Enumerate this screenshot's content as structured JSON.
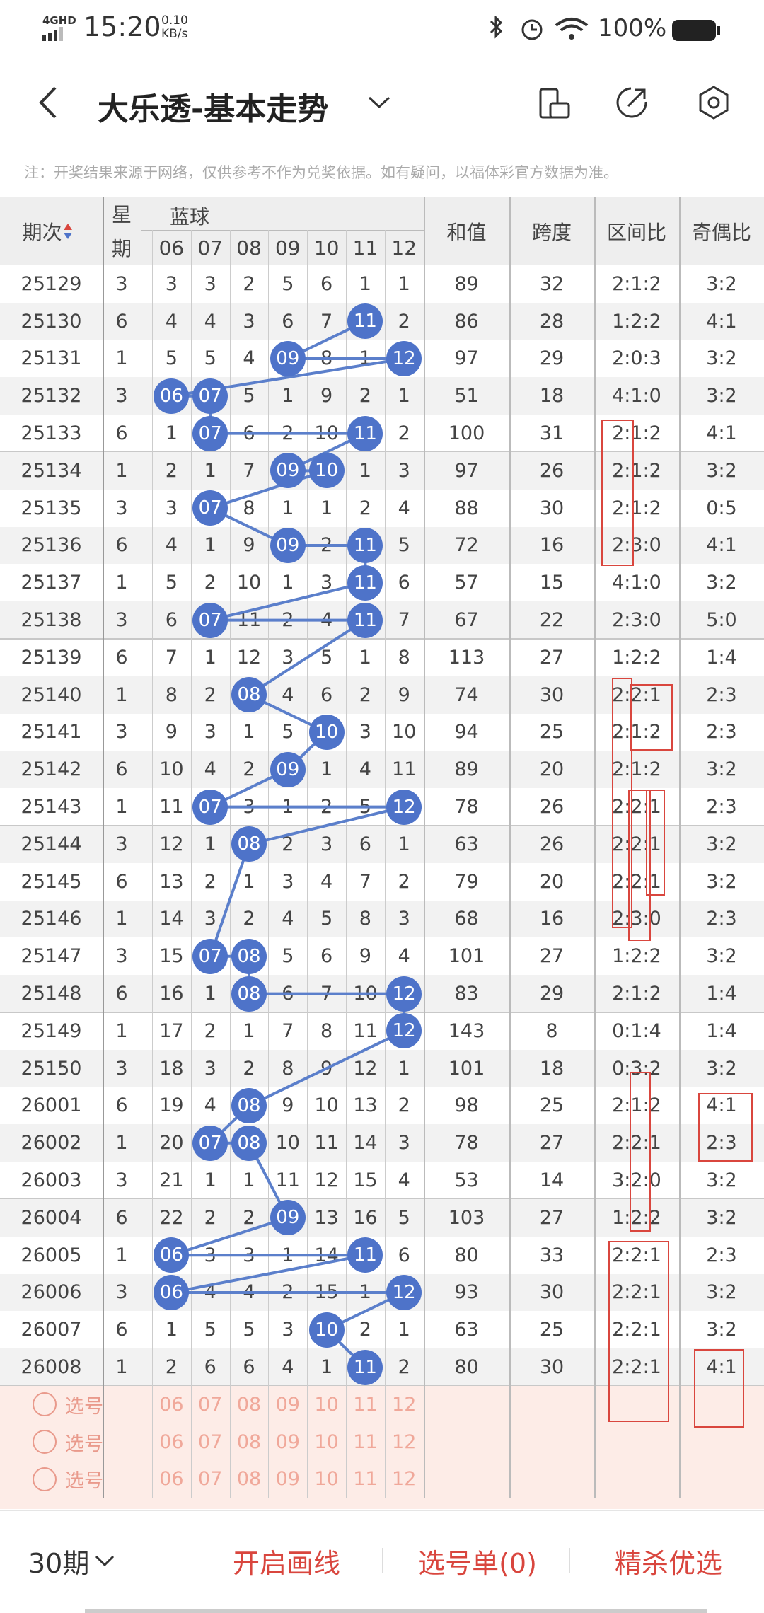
{
  "status_bar": {
    "network": "4GHD",
    "time": "15:20",
    "speed": "0.10",
    "speed_unit": "KB/s",
    "battery": "100%"
  },
  "header": {
    "title": "大乐透-基本走势"
  },
  "note": "注：开奖结果来源于网络，仅供参考不作为兑奖依据。如有疑问，以福体彩官方数据为准。",
  "table": {
    "columns": {
      "period": "期次",
      "week_top": "星",
      "week_bottom": "期",
      "blue": "蓝球",
      "blue_numbers": [
        "06",
        "07",
        "08",
        "09",
        "10",
        "11",
        "12"
      ],
      "sum": "和值",
      "span": "跨度",
      "zone": "区间比",
      "parity": "奇偶比"
    },
    "rows": [
      {
        "period": "25129",
        "week": "3",
        "blue": [
          "3",
          "3",
          "2",
          "5",
          "6",
          "1",
          "1"
        ],
        "hit": [
          false,
          false,
          false,
          false,
          false,
          false,
          false
        ],
        "sum": "89",
        "span": "32",
        "zone": "2:1:2",
        "parity": "3:2"
      },
      {
        "period": "25130",
        "week": "6",
        "blue": [
          "4",
          "4",
          "3",
          "6",
          "7",
          "11",
          "2"
        ],
        "hit": [
          false,
          false,
          false,
          false,
          false,
          true,
          false
        ],
        "sum": "86",
        "span": "28",
        "zone": "1:2:2",
        "parity": "4:1"
      },
      {
        "period": "25131",
        "week": "1",
        "blue": [
          "5",
          "5",
          "4",
          "09",
          "8",
          "1",
          "12"
        ],
        "hit": [
          false,
          false,
          false,
          true,
          false,
          false,
          true
        ],
        "sum": "97",
        "span": "29",
        "zone": "2:0:3",
        "parity": "3:2"
      },
      {
        "period": "25132",
        "week": "3",
        "blue": [
          "06",
          "07",
          "5",
          "1",
          "9",
          "2",
          "1"
        ],
        "hit": [
          true,
          true,
          false,
          false,
          false,
          false,
          false
        ],
        "sum": "51",
        "span": "18",
        "zone": "4:1:0",
        "parity": "3:2"
      },
      {
        "period": "25133",
        "week": "6",
        "blue": [
          "1",
          "07",
          "6",
          "2",
          "10",
          "11",
          "2"
        ],
        "hit": [
          false,
          true,
          false,
          false,
          false,
          true,
          false
        ],
        "sum": "100",
        "span": "31",
        "zone": "2:1:2",
        "parity": "4:1"
      },
      {
        "period": "25134",
        "week": "1",
        "blue": [
          "2",
          "1",
          "7",
          "09",
          "10",
          "1",
          "3"
        ],
        "hit": [
          false,
          false,
          false,
          true,
          true,
          false,
          false
        ],
        "sum": "97",
        "span": "26",
        "zone": "2:1:2",
        "parity": "3:2"
      },
      {
        "period": "25135",
        "week": "3",
        "blue": [
          "3",
          "07",
          "8",
          "1",
          "1",
          "2",
          "4"
        ],
        "hit": [
          false,
          true,
          false,
          false,
          false,
          false,
          false
        ],
        "sum": "88",
        "span": "30",
        "zone": "2:1:2",
        "parity": "0:5"
      },
      {
        "period": "25136",
        "week": "6",
        "blue": [
          "4",
          "1",
          "9",
          "09",
          "2",
          "11",
          "5"
        ],
        "hit": [
          false,
          false,
          false,
          true,
          false,
          true,
          false
        ],
        "sum": "72",
        "span": "16",
        "zone": "2:3:0",
        "parity": "4:1"
      },
      {
        "period": "25137",
        "week": "1",
        "blue": [
          "5",
          "2",
          "10",
          "1",
          "3",
          "11",
          "6"
        ],
        "hit": [
          false,
          false,
          false,
          false,
          false,
          true,
          false
        ],
        "sum": "57",
        "span": "15",
        "zone": "4:1:0",
        "parity": "3:2"
      },
      {
        "period": "25138",
        "week": "3",
        "blue": [
          "6",
          "07",
          "11",
          "2",
          "4",
          "11",
          "7"
        ],
        "hit": [
          false,
          true,
          false,
          false,
          false,
          true,
          false
        ],
        "sum": "67",
        "span": "22",
        "zone": "2:3:0",
        "parity": "5:0"
      },
      {
        "period": "25139",
        "week": "6",
        "blue": [
          "7",
          "1",
          "12",
          "3",
          "5",
          "1",
          "8"
        ],
        "hit": [
          false,
          false,
          false,
          false,
          false,
          false,
          false
        ],
        "sum": "113",
        "span": "27",
        "zone": "1:2:2",
        "parity": "1:4"
      },
      {
        "period": "25140",
        "week": "1",
        "blue": [
          "8",
          "2",
          "08",
          "4",
          "6",
          "2",
          "9"
        ],
        "hit": [
          false,
          false,
          true,
          false,
          false,
          false,
          false
        ],
        "sum": "74",
        "span": "30",
        "zone": "2:2:1",
        "parity": "2:3"
      },
      {
        "period": "25141",
        "week": "3",
        "blue": [
          "9",
          "3",
          "1",
          "5",
          "10",
          "3",
          "10"
        ],
        "hit": [
          false,
          false,
          false,
          false,
          true,
          false,
          false
        ],
        "sum": "94",
        "span": "25",
        "zone": "2:1:2",
        "parity": "2:3"
      },
      {
        "period": "25142",
        "week": "6",
        "blue": [
          "10",
          "4",
          "2",
          "09",
          "1",
          "4",
          "11"
        ],
        "hit": [
          false,
          false,
          false,
          true,
          false,
          false,
          false
        ],
        "sum": "89",
        "span": "20",
        "zone": "2:1:2",
        "parity": "3:2"
      },
      {
        "period": "25143",
        "week": "1",
        "blue": [
          "11",
          "07",
          "3",
          "1",
          "2",
          "5",
          "12"
        ],
        "hit": [
          false,
          true,
          false,
          false,
          false,
          false,
          true
        ],
        "sum": "78",
        "span": "26",
        "zone": "2:2:1",
        "parity": "2:3"
      },
      {
        "period": "25144",
        "week": "3",
        "blue": [
          "12",
          "1",
          "08",
          "2",
          "3",
          "6",
          "1"
        ],
        "hit": [
          false,
          false,
          true,
          false,
          false,
          false,
          false
        ],
        "sum": "63",
        "span": "26",
        "zone": "2:2:1",
        "parity": "3:2"
      },
      {
        "period": "25145",
        "week": "6",
        "blue": [
          "13",
          "2",
          "1",
          "3",
          "4",
          "7",
          "2"
        ],
        "hit": [
          false,
          false,
          false,
          false,
          false,
          false,
          false
        ],
        "sum": "79",
        "span": "20",
        "zone": "2:2:1",
        "parity": "3:2"
      },
      {
        "period": "25146",
        "week": "1",
        "blue": [
          "14",
          "3",
          "2",
          "4",
          "5",
          "8",
          "3"
        ],
        "hit": [
          false,
          false,
          false,
          false,
          false,
          false,
          false
        ],
        "sum": "68",
        "span": "16",
        "zone": "2:3:0",
        "parity": "2:3"
      },
      {
        "period": "25147",
        "week": "3",
        "blue": [
          "15",
          "07",
          "08",
          "5",
          "6",
          "9",
          "4"
        ],
        "hit": [
          false,
          true,
          true,
          false,
          false,
          false,
          false
        ],
        "sum": "101",
        "span": "27",
        "zone": "1:2:2",
        "parity": "3:2"
      },
      {
        "period": "25148",
        "week": "6",
        "blue": [
          "16",
          "1",
          "08",
          "6",
          "7",
          "10",
          "12"
        ],
        "hit": [
          false,
          false,
          true,
          false,
          false,
          false,
          true
        ],
        "sum": "83",
        "span": "29",
        "zone": "2:1:2",
        "parity": "1:4"
      },
      {
        "period": "25149",
        "week": "1",
        "blue": [
          "17",
          "2",
          "1",
          "7",
          "8",
          "11",
          "12"
        ],
        "hit": [
          false,
          false,
          false,
          false,
          false,
          false,
          true
        ],
        "sum": "143",
        "span": "8",
        "zone": "0:1:4",
        "parity": "1:4"
      },
      {
        "period": "25150",
        "week": "3",
        "blue": [
          "18",
          "3",
          "2",
          "8",
          "9",
          "12",
          "1"
        ],
        "hit": [
          false,
          false,
          false,
          false,
          false,
          false,
          false
        ],
        "sum": "101",
        "span": "18",
        "zone": "0:3:2",
        "parity": "3:2"
      },
      {
        "period": "26001",
        "week": "6",
        "blue": [
          "19",
          "4",
          "08",
          "9",
          "10",
          "13",
          "2"
        ],
        "hit": [
          false,
          false,
          true,
          false,
          false,
          false,
          false
        ],
        "sum": "98",
        "span": "25",
        "zone": "2:1:2",
        "parity": "4:1"
      },
      {
        "period": "26002",
        "week": "1",
        "blue": [
          "20",
          "07",
          "08",
          "10",
          "11",
          "14",
          "3"
        ],
        "hit": [
          false,
          true,
          true,
          false,
          false,
          false,
          false
        ],
        "sum": "78",
        "span": "27",
        "zone": "2:2:1",
        "parity": "2:3"
      },
      {
        "period": "26003",
        "week": "3",
        "blue": [
          "21",
          "1",
          "1",
          "11",
          "12",
          "15",
          "4"
        ],
        "hit": [
          false,
          false,
          false,
          false,
          false,
          false,
          false
        ],
        "sum": "53",
        "span": "14",
        "zone": "3:2:0",
        "parity": "3:2"
      },
      {
        "period": "26004",
        "week": "6",
        "blue": [
          "22",
          "2",
          "2",
          "09",
          "13",
          "16",
          "5"
        ],
        "hit": [
          false,
          false,
          false,
          true,
          false,
          false,
          false
        ],
        "sum": "103",
        "span": "27",
        "zone": "1:2:2",
        "parity": "3:2"
      },
      {
        "period": "26005",
        "week": "1",
        "blue": [
          "06",
          "3",
          "3",
          "1",
          "14",
          "11",
          "6"
        ],
        "hit": [
          true,
          false,
          false,
          false,
          false,
          true,
          false
        ],
        "sum": "80",
        "span": "33",
        "zone": "2:2:1",
        "parity": "2:3"
      },
      {
        "period": "26006",
        "week": "3",
        "blue": [
          "06",
          "4",
          "4",
          "2",
          "15",
          "1",
          "12"
        ],
        "hit": [
          true,
          false,
          false,
          false,
          false,
          false,
          true
        ],
        "sum": "93",
        "span": "30",
        "zone": "2:2:1",
        "parity": "3:2"
      },
      {
        "period": "26007",
        "week": "6",
        "blue": [
          "1",
          "5",
          "5",
          "3",
          "10",
          "2",
          "1"
        ],
        "hit": [
          false,
          false,
          false,
          false,
          true,
          false,
          false
        ],
        "sum": "63",
        "span": "25",
        "zone": "2:2:1",
        "parity": "3:2"
      },
      {
        "period": "26008",
        "week": "1",
        "blue": [
          "2",
          "6",
          "6",
          "4",
          "1",
          "11",
          "2"
        ],
        "hit": [
          false,
          false,
          false,
          false,
          false,
          true,
          false
        ],
        "sum": "80",
        "span": "30",
        "zone": "2:2:1",
        "parity": "4:1"
      }
    ]
  },
  "pick_rows": [
    {
      "label": "选号",
      "numbers": [
        "06",
        "07",
        "08",
        "09",
        "10",
        "11",
        "12"
      ]
    },
    {
      "label": "选号",
      "numbers": [
        "06",
        "07",
        "08",
        "09",
        "10",
        "11",
        "12"
      ]
    },
    {
      "label": "选号",
      "numbers": [
        "06",
        "07",
        "08",
        "09",
        "10",
        "11",
        "12"
      ]
    }
  ],
  "bottom_bar": {
    "period": "30期",
    "draw": "开启画线",
    "list": "选号单(0)",
    "select": "精杀优选"
  }
}
